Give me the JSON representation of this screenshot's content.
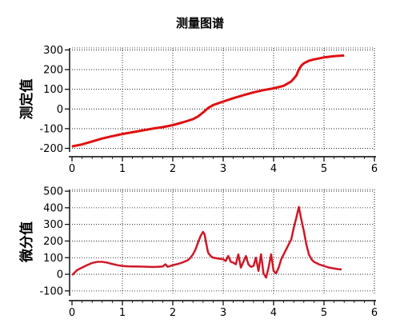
{
  "title": "测量图谱",
  "colors": {
    "primary_line": "#e01010",
    "secondary_line": "#3333cc",
    "grid": "#000000"
  },
  "chart_data": [
    {
      "type": "line",
      "ylabel": "测定值",
      "xlabel": "",
      "xlim": [
        0,
        6
      ],
      "ylim": [
        -210,
        310
      ],
      "xticks": [
        0,
        1,
        2,
        3,
        4,
        5,
        6
      ],
      "yticks": [
        -200,
        -100,
        0,
        100,
        200,
        300
      ],
      "grid": true,
      "series": [
        {
          "x": [
            0.0,
            0.2,
            0.4,
            0.6,
            0.8,
            1.0,
            1.2,
            1.4,
            1.6,
            1.8,
            2.0,
            2.2,
            2.4,
            2.5,
            2.6,
            2.7,
            2.8,
            3.0,
            3.2,
            3.4,
            3.6,
            3.8,
            4.0,
            4.2,
            4.35,
            4.45,
            4.5,
            4.55,
            4.6,
            4.7,
            4.8,
            5.0,
            5.2,
            5.4
          ],
          "y": [
            -190,
            -180,
            -165,
            -150,
            -138,
            -127,
            -118,
            -109,
            -100,
            -92,
            -82,
            -68,
            -52,
            -38,
            -18,
            5,
            20,
            38,
            55,
            70,
            84,
            96,
            105,
            118,
            140,
            170,
            200,
            220,
            232,
            245,
            252,
            262,
            268,
            272
          ]
        }
      ]
    },
    {
      "type": "line",
      "ylabel": "微分值",
      "xlabel": "",
      "xlim": [
        0,
        6
      ],
      "ylim": [
        -120,
        510
      ],
      "xticks": [
        0,
        1,
        2,
        3,
        4,
        5,
        6
      ],
      "yticks": [
        -100,
        0,
        100,
        200,
        300,
        400,
        500
      ],
      "grid": true,
      "series": [
        {
          "x": [
            0.0,
            0.05,
            0.1,
            0.2,
            0.3,
            0.4,
            0.5,
            0.6,
            0.7,
            0.8,
            0.9,
            1.0,
            1.1,
            1.2,
            1.3,
            1.4,
            1.5,
            1.6,
            1.7,
            1.8,
            1.85,
            1.9,
            2.0,
            2.1,
            2.2,
            2.3,
            2.35,
            2.4,
            2.45,
            2.5,
            2.55,
            2.6,
            2.63,
            2.66,
            2.7,
            2.75,
            2.8,
            2.9,
            3.0,
            3.05,
            3.1,
            3.15,
            3.2,
            3.25,
            3.3,
            3.35,
            3.4,
            3.45,
            3.5,
            3.55,
            3.6,
            3.65,
            3.7,
            3.75,
            3.8,
            3.85,
            3.9,
            3.95,
            4.0,
            4.05,
            4.1,
            4.15,
            4.2,
            4.25,
            4.3,
            4.35,
            4.4,
            4.45,
            4.5,
            4.55,
            4.6,
            4.65,
            4.7,
            4.75,
            4.8,
            4.9,
            5.0,
            5.1,
            5.2,
            5.3,
            5.35
          ],
          "y": [
            -5,
            10,
            25,
            40,
            55,
            68,
            75,
            75,
            70,
            62,
            55,
            50,
            48,
            47,
            47,
            46,
            45,
            44,
            45,
            47,
            60,
            45,
            55,
            62,
            72,
            85,
            100,
            120,
            150,
            190,
            230,
            255,
            240,
            190,
            130,
            110,
            100,
            95,
            90,
            80,
            110,
            75,
            70,
            60,
            120,
            40,
            75,
            110,
            60,
            45,
            50,
            100,
            20,
            120,
            5,
            -20,
            40,
            120,
            20,
            5,
            40,
            90,
            120,
            150,
            180,
            210,
            280,
            340,
            405,
            330,
            260,
            180,
            120,
            90,
            75,
            60,
            50,
            40,
            35,
            30,
            30
          ]
        }
      ]
    }
  ]
}
